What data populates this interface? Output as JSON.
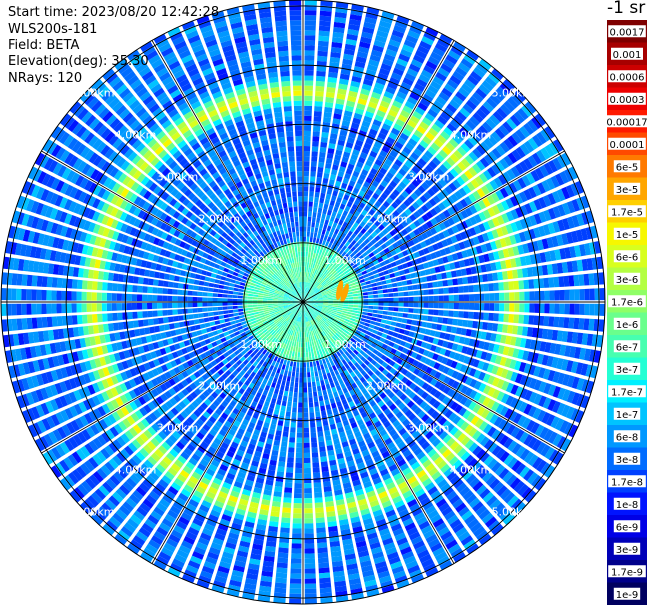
{
  "header": {
    "start_time_label": "Start time:",
    "start_time": "2023/08/20 12:42:28",
    "instrument": "WLS200s-181",
    "field_label": "Field:",
    "field": "BETA",
    "elevation_label": "Elevation(deg):",
    "elevation": "35.30",
    "nrays_label": "NRays:",
    "nrays": "120"
  },
  "chart_data": {
    "type": "heatmap",
    "projection": "polar-ppi",
    "field": "BETA",
    "n_rays": 120,
    "range_rings_km": [
      1,
      2,
      3,
      4,
      5
    ],
    "range_labels": [
      "1.00km",
      "2.00km",
      "3.00km",
      "4.00km",
      "5.00km"
    ],
    "max_range_km": 5.1,
    "azimuth_lines_deg": [
      0,
      30,
      60,
      90,
      120,
      150,
      180,
      210,
      240,
      270,
      300,
      330
    ],
    "background_level": "3e-8",
    "bright_ring_km": {
      "inner": 3.25,
      "peak": 3.55,
      "outer": 3.85,
      "peak_level": "1e-5"
    },
    "inner_ring_km": {
      "inner": 0.3,
      "outer": 1.0,
      "level": "6e-7"
    },
    "hotspots": [
      {
        "azimuth_deg": 72,
        "range_km": 0.65,
        "level": "3e-5"
      },
      {
        "azimuth_deg": 78,
        "range_km": 0.72,
        "level": "3e-5"
      }
    ],
    "colorbar": {
      "unit": "-1 sr",
      "labels": [
        "0.0017",
        "0.001",
        "0.0006",
        "0.0003",
        "0.00017",
        "0.0001",
        "6e-5",
        "3e-5",
        "1.7e-5",
        "1e-5",
        "6e-6",
        "3e-6",
        "1.7e-6",
        "1e-6",
        "6e-7",
        "3e-7",
        "1.7e-7",
        "1e-7",
        "6e-8",
        "3e-8",
        "1.7e-8",
        "1e-8",
        "6e-9",
        "3e-9",
        "1.7e-9",
        "1e-9"
      ],
      "colors": [
        "#7f0000",
        "#a70000",
        "#cc0000",
        "#ee0000",
        "#ff1a00",
        "#ff4a00",
        "#ff7a00",
        "#ffa600",
        "#ffcf00",
        "#f7f700",
        "#d8ff1e",
        "#b4ff42",
        "#8fff66",
        "#6aff8c",
        "#47ffb0",
        "#24ffd4",
        "#00f0ff",
        "#00c4ff",
        "#0098ff",
        "#006cff",
        "#0040ff",
        "#0014ff",
        "#0000e6",
        "#0000b8",
        "#00008a",
        "#000060"
      ]
    }
  }
}
